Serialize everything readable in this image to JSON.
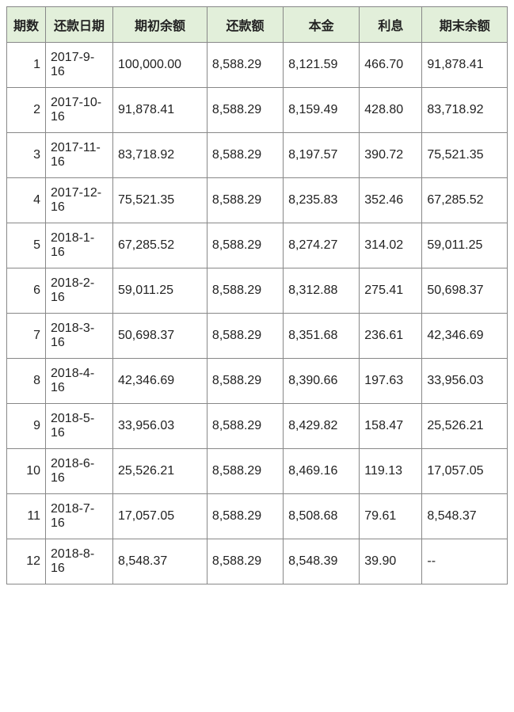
{
  "table": {
    "header_bg": "#e2efda",
    "border_color": "#888888",
    "font_size": 16,
    "columns": [
      {
        "key": "period",
        "label": "期数",
        "align": "right"
      },
      {
        "key": "date",
        "label": "还款日期",
        "align": "left"
      },
      {
        "key": "begin_bal",
        "label": "期初余额",
        "align": "left"
      },
      {
        "key": "payment",
        "label": "还款额",
        "align": "left"
      },
      {
        "key": "principal",
        "label": "本金",
        "align": "left"
      },
      {
        "key": "interest",
        "label": "利息",
        "align": "left"
      },
      {
        "key": "end_bal",
        "label": "期末余额",
        "align": "left"
      }
    ],
    "rows": [
      {
        "period": "1",
        "date": "2017-9-16",
        "begin_bal": "100,000.00",
        "payment": "8,588.29",
        "principal": "8,121.59",
        "interest": "466.70",
        "end_bal": "91,878.41"
      },
      {
        "period": "2",
        "date": "2017-10-16",
        "begin_bal": "91,878.41",
        "payment": "8,588.29",
        "principal": "8,159.49",
        "interest": "428.80",
        "end_bal": "83,718.92"
      },
      {
        "period": "3",
        "date": "2017-11-16",
        "begin_bal": "83,718.92",
        "payment": "8,588.29",
        "principal": "8,197.57",
        "interest": "390.72",
        "end_bal": "75,521.35"
      },
      {
        "period": "4",
        "date": "2017-12-16",
        "begin_bal": "75,521.35",
        "payment": "8,588.29",
        "principal": "8,235.83",
        "interest": "352.46",
        "end_bal": "67,285.52"
      },
      {
        "period": "5",
        "date": "2018-1-16",
        "begin_bal": "67,285.52",
        "payment": "8,588.29",
        "principal": "8,274.27",
        "interest": "314.02",
        "end_bal": "59,011.25"
      },
      {
        "period": "6",
        "date": "2018-2-16",
        "begin_bal": "59,011.25",
        "payment": "8,588.29",
        "principal": "8,312.88",
        "interest": "275.41",
        "end_bal": "50,698.37"
      },
      {
        "period": "7",
        "date": "2018-3-16",
        "begin_bal": "50,698.37",
        "payment": "8,588.29",
        "principal": "8,351.68",
        "interest": "236.61",
        "end_bal": "42,346.69"
      },
      {
        "period": "8",
        "date": "2018-4-16",
        "begin_bal": "42,346.69",
        "payment": "8,588.29",
        "principal": "8,390.66",
        "interest": "197.63",
        "end_bal": "33,956.03"
      },
      {
        "period": "9",
        "date": "2018-5-16",
        "begin_bal": "33,956.03",
        "payment": "8,588.29",
        "principal": "8,429.82",
        "interest": "158.47",
        "end_bal": "25,526.21"
      },
      {
        "period": "10",
        "date": "2018-6-16",
        "begin_bal": "25,526.21",
        "payment": "8,588.29",
        "principal": "8,469.16",
        "interest": "119.13",
        "end_bal": "17,057.05"
      },
      {
        "period": "11",
        "date": "2018-7-16",
        "begin_bal": "17,057.05",
        "payment": "8,588.29",
        "principal": "8,508.68",
        "interest": "79.61",
        "end_bal": "8,548.37"
      },
      {
        "period": "12",
        "date": "2018-8-16",
        "begin_bal": "8,548.37",
        "payment": "8,588.29",
        "principal": "8,548.39",
        "interest": "39.90",
        "end_bal": "--"
      }
    ]
  }
}
